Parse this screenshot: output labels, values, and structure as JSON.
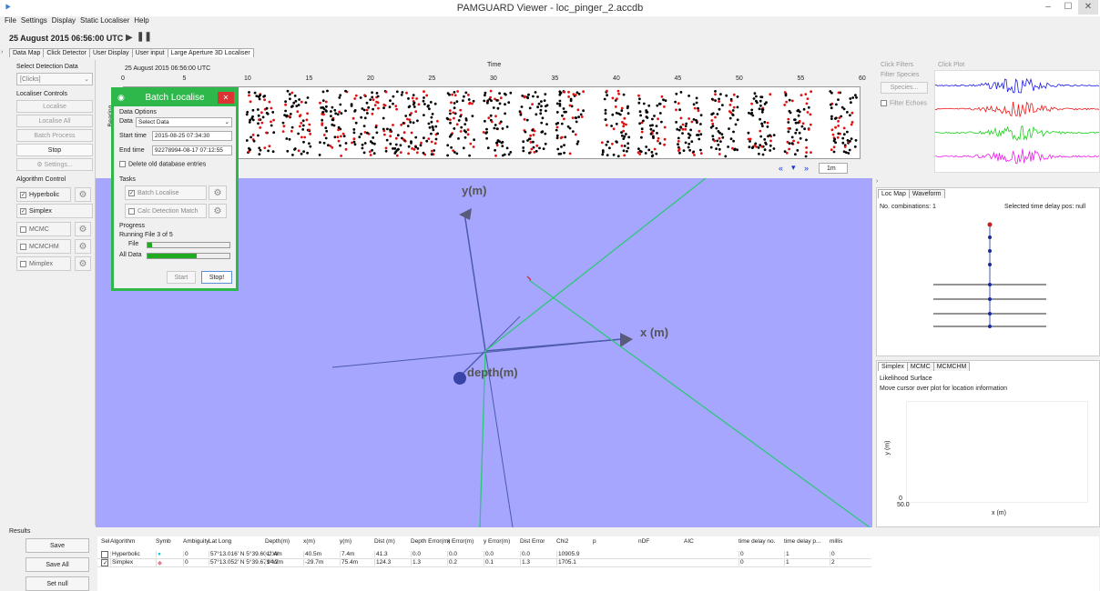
{
  "window": {
    "title": "PAMGUARD Viewer - loc_pinger_2.accdb"
  },
  "menu": [
    "File",
    "Settings",
    "Display",
    "Static Localiser",
    "Help"
  ],
  "timebar": {
    "time": "25 August 2015 06:56:00 UTC"
  },
  "tabs": [
    "Data Map",
    "Click Detector",
    "User Display",
    "User input",
    "Large Aperture 3D Localiser"
  ],
  "left": {
    "select_label": "Select Detection Data",
    "select_value": "[Clicks]",
    "controls_label": "Localiser Controls",
    "localise": "Localise",
    "localise_all": "Localise All",
    "batch_process": "Batch Process",
    "stop": "Stop",
    "settings": "Settings...",
    "algo_label": "Algorithm Control",
    "algorithms": [
      {
        "name": "Hyperbolic",
        "checked": "✓"
      },
      {
        "name": "Simplex",
        "checked": "✓"
      },
      {
        "name": "MCMC",
        "checked": ""
      },
      {
        "name": "MCMCHM",
        "checked": ""
      },
      {
        "name": "Mimplex",
        "checked": ""
      }
    ]
  },
  "bearing": {
    "date": "25 August 2015 06:56:00 UTC",
    "time_label": "Time",
    "ticks": [
      "0",
      "5",
      "10",
      "15",
      "20",
      "25",
      "30",
      "35",
      "40",
      "45",
      "50",
      "55",
      "60"
    ],
    "y_label": "Bearing",
    "zoom": "1m"
  },
  "dialog": {
    "title": "Batch Localise",
    "data_options": "Data Options",
    "data_label": "Data",
    "data_value": "Select Data",
    "start_label": "Start time",
    "start_value": "2015-08-25 07:34:30",
    "end_label": "End time",
    "end_value": "92278994-08-17 07:12:55",
    "delete_old": "Delete old database entries",
    "tasks": "Tasks",
    "batch_localise": "Batch Localise",
    "calc_match": "Calc Detection Match",
    "progress": "Progress",
    "running": "Running  File 3 of 5",
    "file_label": "File",
    "alldata_label": "All Data",
    "file_progress": 0.05,
    "all_progress": 0.6,
    "start_btn": "Start",
    "stop_btn": "Stop!"
  },
  "view3d": {
    "y_axis": "y(m)",
    "x_axis": "x (m)",
    "depth_axis": "depth(m)"
  },
  "right": {
    "click_filters": "Click Filters",
    "filter_species": "Filter Species",
    "species_btn": "Species...",
    "filter_echoes": "Filter Echoes",
    "click_plot": "Click Plot",
    "tabs1": [
      "Loc Map",
      "Waveform"
    ],
    "combinations": "No. combinations: 1",
    "selected_pos": "Selected time delay pos: null",
    "tabs2": [
      "Simplex",
      "MCMC",
      "MCMCHM"
    ],
    "likelihood": "Likelihood Surface",
    "hint": "Move cursor over plot for location information",
    "lik_ylabel": "y (m)",
    "lik_xlabel": "x (m)",
    "lik_tick1": "0",
    "lik_tick2": "50.0"
  },
  "results": {
    "label": "Results",
    "save": "Save",
    "save_all": "Save All",
    "set_null": "Set null",
    "columns": [
      "Sel",
      "Algorithm",
      "Symb",
      "Ambiguity",
      "Lat Long",
      "Depth(m)",
      "x(m)",
      "y(m)",
      "Dist (m)",
      "Depth Error(m)",
      "x Error(m)",
      "y Error(m)",
      "Dist Error",
      "Chi2",
      "p",
      "nDF",
      "AIC",
      "time delay no.",
      "time delay p...",
      "millis"
    ],
    "rows": [
      [
        "",
        "Hyperbolic",
        "●",
        "0",
        "57°13.016' N  5°39.601' W",
        "-2.4m",
        "40.5m",
        "7.4m",
        "41.3",
        "0.0",
        "0.0",
        "0.0",
        "0.0",
        "10905.9",
        "",
        "",
        "",
        "0",
        "1",
        "0"
      ],
      [
        "✓",
        "Simplex",
        "◆",
        "0",
        "57°13.052' N  5°39.671' W",
        "94.2m",
        "-29.7m",
        "75.4m",
        "124.3",
        "1.3",
        "0.2",
        "0.1",
        "1.3",
        "1705.1",
        "",
        "",
        "",
        "0",
        "1",
        "2"
      ]
    ]
  },
  "colors": {
    "accent": "#2eb84b",
    "view_bg": "#a6a6ff",
    "hyper": "#19c8d8",
    "simplex": "#e87b8c"
  }
}
